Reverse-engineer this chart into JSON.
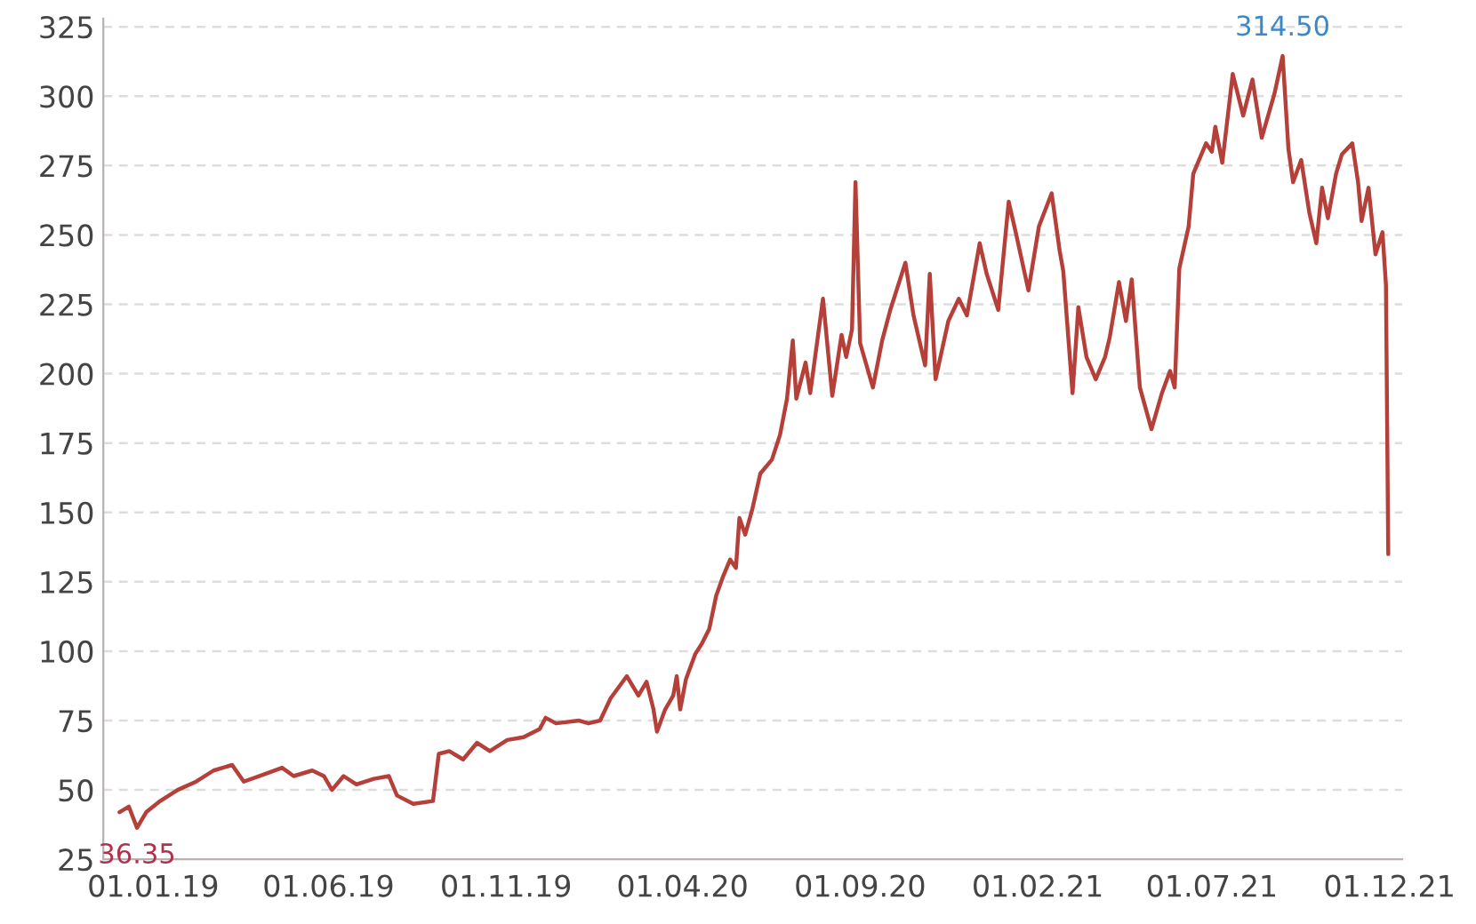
{
  "chart_data": {
    "type": "line",
    "x": [
      "2018-12-03",
      "2018-12-11",
      "2018-12-18",
      "2018-12-26",
      "2019-01-07",
      "2019-01-22",
      "2019-02-07",
      "2019-02-22",
      "2019-03-10",
      "2019-03-20",
      "2019-04-09",
      "2019-04-22",
      "2019-05-02",
      "2019-05-18",
      "2019-05-28",
      "2019-06-04",
      "2019-06-14",
      "2019-06-25",
      "2019-07-10",
      "2019-07-23",
      "2019-07-30",
      "2019-08-13",
      "2019-08-30",
      "2019-09-04",
      "2019-09-13",
      "2019-09-25",
      "2019-10-07",
      "2019-10-18",
      "2019-11-02",
      "2019-11-16",
      "2019-11-30",
      "2019-12-05",
      "2019-12-14",
      "2020-01-03",
      "2020-01-11",
      "2020-01-21",
      "2020-01-30",
      "2020-02-13",
      "2020-02-23",
      "2020-03-01",
      "2020-03-07",
      "2020-03-10",
      "2020-03-17",
      "2020-03-24",
      "2020-03-27",
      "2020-03-30",
      "2020-04-04",
      "2020-04-12",
      "2020-04-18",
      "2020-04-24",
      "2020-04-30",
      "2020-05-06",
      "2020-05-12",
      "2020-05-17",
      "2020-05-20",
      "2020-05-25",
      "2020-05-31",
      "2020-06-07",
      "2020-06-17",
      "2020-06-24",
      "2020-06-30",
      "2020-07-05",
      "2020-07-08",
      "2020-07-16",
      "2020-07-20",
      "2020-07-31",
      "2020-08-08",
      "2020-08-16",
      "2020-08-20",
      "2020-08-25",
      "2020-08-28",
      "2020-09-01",
      "2020-09-12",
      "2020-09-20",
      "2020-09-27",
      "2020-10-10",
      "2020-10-17",
      "2020-10-27",
      "2020-10-31",
      "2020-11-05",
      "2020-11-16",
      "2020-11-25",
      "2020-12-02",
      "2020-12-13",
      "2020-12-19",
      "2020-12-29",
      "2021-01-07",
      "2021-01-13",
      "2021-01-24",
      "2021-02-02",
      "2021-02-13",
      "2021-02-16",
      "2021-02-20",
      "2021-02-23",
      "2021-03-03",
      "2021-03-08",
      "2021-03-15",
      "2021-03-23",
      "2021-03-31",
      "2021-04-04",
      "2021-04-12",
      "2021-04-18",
      "2021-04-23",
      "2021-04-30",
      "2021-05-10",
      "2021-05-19",
      "2021-05-26",
      "2021-05-30",
      "2021-06-03",
      "2021-06-11",
      "2021-06-15",
      "2021-06-26",
      "2021-07-01",
      "2021-07-04",
      "2021-07-10",
      "2021-07-19",
      "2021-07-28",
      "2021-08-05",
      "2021-08-13",
      "2021-08-24",
      "2021-08-31",
      "2021-09-05",
      "2021-09-09",
      "2021-09-16",
      "2021-09-23",
      "2021-09-29",
      "2021-10-04",
      "2021-10-09",
      "2021-10-16",
      "2021-10-21",
      "2021-10-30",
      "2021-11-04",
      "2021-11-07",
      "2021-11-13",
      "2021-11-19",
      "2021-11-25",
      "2021-11-28",
      "2021-11-30"
    ],
    "series": [
      {
        "color": "#b5403a",
        "values": [
          42,
          44,
          36.35,
          42,
          46,
          50,
          53,
          57,
          59,
          53,
          56,
          58,
          55,
          57,
          55,
          50,
          55,
          52,
          54,
          55,
          48,
          45,
          46,
          63,
          64,
          61,
          67,
          64,
          68,
          69,
          72,
          76,
          74,
          75,
          74,
          75,
          83,
          91,
          84,
          89,
          79,
          71,
          79,
          84,
          91,
          79,
          90,
          99,
          103,
          108,
          120,
          127,
          133,
          130,
          148,
          142,
          151,
          164,
          169,
          178,
          191,
          212,
          191,
          204,
          193,
          227,
          192,
          214,
          206,
          216,
          269,
          211,
          195,
          212,
          223,
          240,
          221,
          203,
          236,
          198,
          219,
          227,
          221,
          247,
          236,
          223,
          262,
          251,
          230,
          253,
          265,
          256,
          244,
          237,
          193,
          224,
          206,
          198,
          206,
          213,
          233,
          219,
          234,
          195,
          180,
          193,
          201,
          195,
          238,
          253,
          272,
          283,
          280,
          289,
          276,
          308,
          293,
          306,
          285,
          301,
          314.5,
          281,
          269,
          277,
          258,
          247,
          267,
          256,
          272,
          279,
          283,
          269,
          255,
          267,
          243,
          251,
          232,
          135
        ]
      }
    ],
    "xlim": [
      "2018-11-19",
      "2021-12-12"
    ],
    "xticks": [
      {
        "value": "2019-01-01",
        "label": "01.01.19"
      },
      {
        "value": "2019-06-01",
        "label": "01.06.19"
      },
      {
        "value": "2019-11-01",
        "label": "01.11.19"
      },
      {
        "value": "2020-04-01",
        "label": "01.04.20"
      },
      {
        "value": "2020-09-01",
        "label": "01.09.20"
      },
      {
        "value": "2021-02-01",
        "label": "01.02.21"
      },
      {
        "value": "2021-07-01",
        "label": "01.07.21"
      },
      {
        "value": "2021-12-01",
        "label": "01.12.21"
      }
    ],
    "ylim": [
      25,
      328
    ],
    "yticks": [
      25,
      50,
      75,
      100,
      125,
      150,
      175,
      200,
      225,
      250,
      275,
      300,
      325
    ],
    "grid": "y",
    "annotations": [
      {
        "text": "36.35",
        "x": "2018-12-18",
        "y": 36.35
      },
      {
        "text": "314.50",
        "x": "2021-08-31",
        "y": 314.5
      }
    ]
  }
}
